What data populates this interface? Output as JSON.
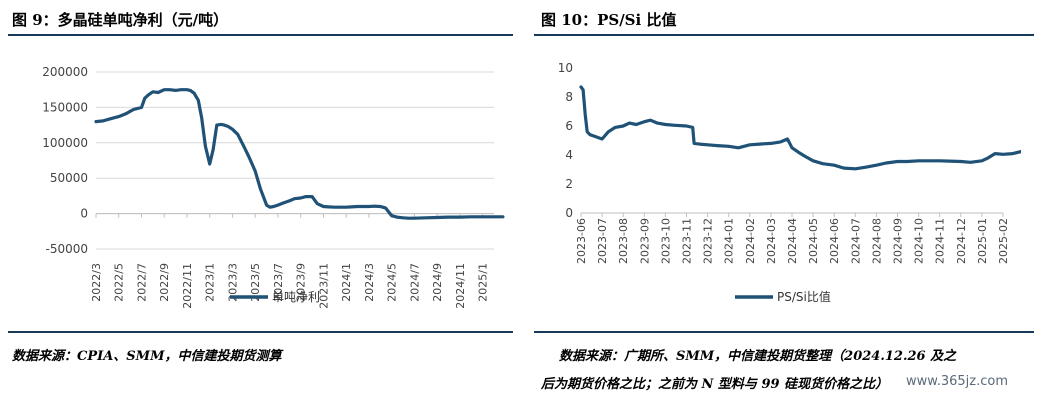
{
  "left_figure": {
    "title": "图 9：多晶硅单吨净利（元/吨）",
    "source": "数据来源：CPIA、SMM，中信建投期货测算"
  },
  "right_figure": {
    "title": "图 10：PS/Si 比值",
    "source_line1": "数据来源：广期所、SMM，中信建投期货整理（2024.12.26 及之",
    "source_line2": "后为期货价格之比；之前为 N 型料与 99 硅现货价格之比）"
  },
  "watermark": "www.365jz.com",
  "colors": {
    "series": "#1f5276",
    "rule": "#1a3a5c",
    "grid": "#d9d9d9"
  },
  "chart_data": [
    {
      "type": "line",
      "title": "",
      "xlabel": "",
      "ylabel": "",
      "ylim": [
        -50000,
        200000
      ],
      "yticks": [
        200000,
        150000,
        100000,
        50000,
        0,
        -50000
      ],
      "ytick_labels": [
        "200000",
        "150000",
        "100000",
        "50000",
        "0",
        "-50000"
      ],
      "xlim": [
        "2022-03",
        "2025-02"
      ],
      "xtick_labels": [
        "2022/3",
        "2022/5",
        "2022/7",
        "2022/9",
        "2022/11",
        "2023/1",
        "2023/3",
        "2023/5",
        "2023/7",
        "2023/9",
        "2023/11",
        "2024/1",
        "2024/3",
        "2024/5",
        "2024/7",
        "2024/9",
        "2024/11",
        "2025/1"
      ],
      "grid": "horizontal",
      "legend_position": "bottom",
      "series": [
        {
          "name": "单吨净利",
          "x": [
            "2022-03-01",
            "2022-03-20",
            "2022-04-10",
            "2022-05-01",
            "2022-05-20",
            "2022-06-10",
            "2022-07-01",
            "2022-07-10",
            "2022-07-20",
            "2022-08-01",
            "2022-08-15",
            "2022-09-01",
            "2022-09-15",
            "2022-10-01",
            "2022-10-15",
            "2022-11-01",
            "2022-11-10",
            "2022-11-20",
            "2022-12-01",
            "2022-12-10",
            "2022-12-20",
            "2023-01-01",
            "2023-01-10",
            "2023-01-20",
            "2023-02-01",
            "2023-02-10",
            "2023-02-20",
            "2023-03-01",
            "2023-03-15",
            "2023-04-01",
            "2023-04-15",
            "2023-05-01",
            "2023-05-15",
            "2023-06-01",
            "2023-06-10",
            "2023-06-20",
            "2023-07-01",
            "2023-07-15",
            "2023-08-01",
            "2023-08-15",
            "2023-09-01",
            "2023-09-15",
            "2023-10-01",
            "2023-10-15",
            "2023-11-01",
            "2023-11-15",
            "2023-12-01",
            "2023-12-15",
            "2024-01-01",
            "2024-01-15",
            "2024-02-01",
            "2024-02-15",
            "2024-03-01",
            "2024-03-15",
            "2024-04-01",
            "2024-04-15",
            "2024-05-01",
            "2024-05-15",
            "2024-06-01",
            "2024-06-15",
            "2024-07-01",
            "2024-08-01",
            "2024-09-01",
            "2024-10-01",
            "2024-11-01",
            "2024-12-01",
            "2025-01-01",
            "2025-02-01",
            "2025-02-25"
          ],
          "y": [
            130000,
            131000,
            134000,
            137000,
            141000,
            147000,
            150000,
            163000,
            168000,
            172000,
            171000,
            175000,
            175000,
            174000,
            175000,
            175000,
            174000,
            170000,
            160000,
            135000,
            95000,
            70000,
            90000,
            125000,
            126000,
            125000,
            123000,
            119000,
            112000,
            95000,
            80000,
            60000,
            35000,
            12000,
            9000,
            10000,
            12000,
            15000,
            18000,
            21000,
            22000,
            24000,
            24000,
            14000,
            10000,
            9500,
            9000,
            9000,
            9000,
            9500,
            10000,
            10000,
            10000,
            10500,
            10000,
            8000,
            -3000,
            -5000,
            -6000,
            -6500,
            -6500,
            -6000,
            -5500,
            -5000,
            -5000,
            -4500,
            -4500,
            -4500,
            -4500
          ]
        }
      ]
    },
    {
      "type": "line",
      "title": "",
      "xlabel": "",
      "ylabel": "",
      "ylim": [
        0,
        10
      ],
      "yticks": [
        10,
        8,
        6,
        4,
        2,
        0
      ],
      "ytick_labels": [
        "10",
        "8",
        "6",
        "4",
        "2",
        "0"
      ],
      "xlim": [
        "2023-06",
        "2025-02"
      ],
      "xtick_labels": [
        "2023-06",
        "2023-07",
        "2023-08",
        "2023-09",
        "2023-10",
        "2023-11",
        "2023-12",
        "2024-01",
        "2024-02",
        "2024-03",
        "2024-04",
        "2024-05",
        "2024-06",
        "2024-07",
        "2024-08",
        "2024-09",
        "2024-10",
        "2024-11",
        "2024-12",
        "2025-01",
        "2025-02"
      ],
      "grid": "none",
      "legend_position": "bottom",
      "series": [
        {
          "name": "PS/Si比值",
          "x": [
            "2023-06-01",
            "2023-06-04",
            "2023-06-07",
            "2023-06-10",
            "2023-06-14",
            "2023-06-20",
            "2023-07-01",
            "2023-07-10",
            "2023-07-20",
            "2023-08-01",
            "2023-08-10",
            "2023-08-20",
            "2023-09-01",
            "2023-09-10",
            "2023-09-20",
            "2023-10-01",
            "2023-10-15",
            "2023-11-01",
            "2023-11-10",
            "2023-11-12",
            "2023-11-20",
            "2023-12-01",
            "2023-12-15",
            "2024-01-01",
            "2024-01-15",
            "2024-02-01",
            "2024-02-15",
            "2024-03-01",
            "2024-03-15",
            "2024-03-25",
            "2024-04-01",
            "2024-04-10",
            "2024-04-20",
            "2024-05-01",
            "2024-05-15",
            "2024-06-01",
            "2024-06-15",
            "2024-07-01",
            "2024-07-15",
            "2024-08-01",
            "2024-08-15",
            "2024-09-01",
            "2024-09-15",
            "2024-10-01",
            "2024-10-15",
            "2024-11-01",
            "2024-11-15",
            "2024-12-01",
            "2024-12-15",
            "2025-01-01",
            "2025-01-10",
            "2025-01-20",
            "2025-02-01",
            "2025-02-15",
            "2025-02-28"
          ],
          "y": [
            8.7,
            8.5,
            6.8,
            5.6,
            5.4,
            5.3,
            5.1,
            5.6,
            5.9,
            6.0,
            6.2,
            6.1,
            6.3,
            6.4,
            6.2,
            6.1,
            6.05,
            6.0,
            5.9,
            4.8,
            4.75,
            4.7,
            4.65,
            4.6,
            4.5,
            4.7,
            4.75,
            4.8,
            4.9,
            5.1,
            4.5,
            4.2,
            3.9,
            3.6,
            3.4,
            3.3,
            3.1,
            3.05,
            3.15,
            3.3,
            3.45,
            3.55,
            3.55,
            3.6,
            3.6,
            3.6,
            3.58,
            3.55,
            3.5,
            3.6,
            3.8,
            4.1,
            4.05,
            4.1,
            4.25
          ]
        }
      ]
    }
  ]
}
